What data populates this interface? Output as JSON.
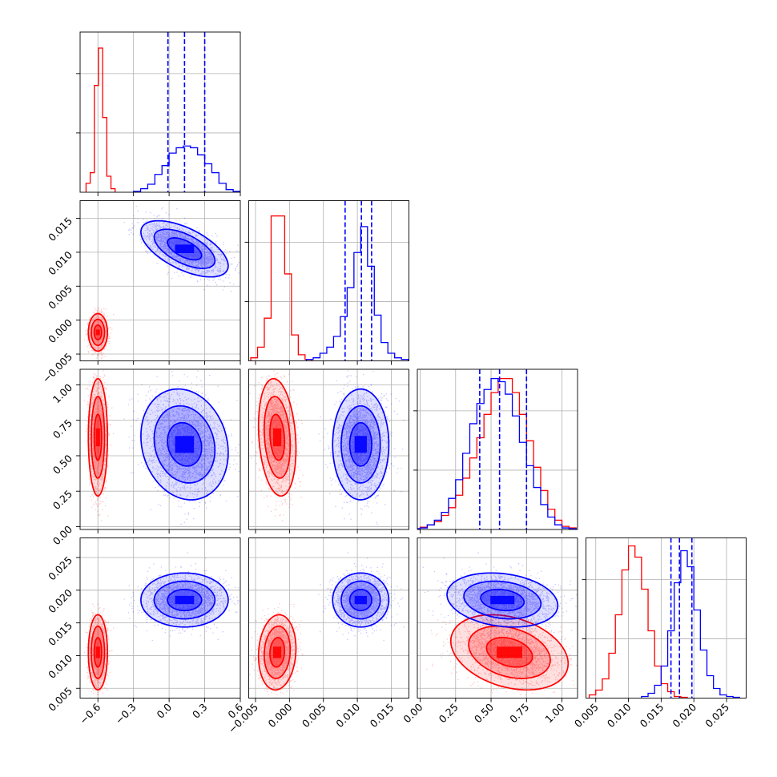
{
  "chart_data": {
    "type": "corner",
    "colors": {
      "red": "#ff0000",
      "blue": "#0000ff"
    },
    "parameters": [
      {
        "range": [
          -0.75,
          0.6
        ],
        "ticks": [
          "−0.6",
          "−0.3",
          "0.0",
          "0.3",
          "0.6"
        ],
        "tick_values": [
          -0.6,
          -0.3,
          0.0,
          0.3,
          0.6
        ]
      },
      {
        "range": [
          -0.006,
          0.0176
        ],
        "ticks": [
          "−0.005",
          "0.000",
          "0.005",
          "0.010",
          "0.015"
        ],
        "tick_values": [
          -0.005,
          0.0,
          0.005,
          0.01,
          0.015
        ]
      },
      {
        "range": [
          -0.02,
          1.11
        ],
        "ticks": [
          "0.00",
          "0.25",
          "0.50",
          "0.75",
          "1.00"
        ],
        "tick_values": [
          0.0,
          0.25,
          0.5,
          0.75,
          1.0
        ]
      },
      {
        "range": [
          0.0035,
          0.028
        ],
        "ticks": [
          "0.005",
          "0.010",
          "0.015",
          "0.020",
          "0.025"
        ],
        "tick_values": [
          0.005,
          0.01,
          0.015,
          0.02,
          0.025
        ]
      }
    ],
    "series": [
      {
        "color": "red",
        "mean": [
          -0.6,
          -0.0018,
          0.63,
          0.0105
        ],
        "sd": [
          0.035,
          0.0012,
          0.18,
          0.0025
        ],
        "corr": [
          [
            1,
            0,
            0,
            0
          ],
          [
            0,
            1,
            -0.2,
            0.1
          ],
          [
            0,
            -0.2,
            1,
            -0.3
          ],
          [
            0,
            0.1,
            -0.3,
            1
          ]
        ]
      },
      {
        "color": "blue",
        "mean": [
          0.13,
          0.0105,
          0.58,
          0.0185
        ],
        "sd": [
          0.16,
          0.0018,
          0.17,
          0.0018
        ],
        "corr": [
          [
            1,
            -0.6,
            -0.15,
            0
          ],
          [
            -0.6,
            1,
            0,
            0
          ],
          [
            -0.15,
            0,
            1,
            -0.2
          ],
          [
            0,
            0,
            -0.2,
            1
          ]
        ]
      }
    ],
    "blue_quantiles": [
      [
        -0.01,
        0.13,
        0.3
      ],
      [
        0.0082,
        0.0106,
        0.0121
      ],
      [
        0.42,
        0.56,
        0.75
      ],
      [
        0.0165,
        0.0178,
        0.0197
      ]
    ],
    "histograms": [
      {
        "red": {
          "edges": [
            -0.7,
            -0.665,
            -0.63,
            -0.595,
            -0.56,
            -0.525,
            -0.49,
            -0.455
          ],
          "counts": [
            0.05,
            0.11,
            0.6,
            0.81,
            0.42,
            0.09,
            0.02
          ]
        },
        "blue": {
          "edges": [
            -0.3,
            -0.24,
            -0.18,
            -0.12,
            -0.06,
            0.0,
            0.06,
            0.12,
            0.18,
            0.24,
            0.3,
            0.36,
            0.42,
            0.48,
            0.54,
            0.6
          ],
          "counts": [
            0.005,
            0.02,
            0.045,
            0.1,
            0.15,
            0.22,
            0.25,
            0.26,
            0.25,
            0.21,
            0.16,
            0.11,
            0.05,
            0.015,
            0.005
          ]
        },
        "ymax": 0.9
      },
      {
        "red": {
          "edges": [
            -0.0057,
            -0.0047,
            -0.0037,
            -0.0027,
            -0.0017,
            -0.0007,
            0.0003,
            0.0013,
            0.0023,
            0.0033
          ],
          "counts": [
            0.02,
            0.09,
            0.28,
            0.95,
            0.95,
            0.57,
            0.17,
            0.04,
            0.01
          ]
        },
        "blue": {
          "edges": [
            0.0025,
            0.0035,
            0.0045,
            0.0055,
            0.0065,
            0.0075,
            0.0085,
            0.0095,
            0.0105,
            0.0115,
            0.0125,
            0.0135,
            0.0145,
            0.0155,
            0.0165,
            0.0175
          ],
          "counts": [
            0.01,
            0.02,
            0.05,
            0.09,
            0.16,
            0.29,
            0.48,
            0.71,
            0.88,
            0.62,
            0.3,
            0.12,
            0.05,
            0.02,
            0.01
          ]
        },
        "ymax": 1.05
      },
      {
        "red": {
          "edges": [
            -0.05,
            0.0,
            0.05,
            0.1,
            0.15,
            0.2,
            0.25,
            0.3,
            0.35,
            0.4,
            0.45,
            0.5,
            0.55,
            0.6,
            0.65,
            0.7,
            0.75,
            0.8,
            0.85,
            0.9,
            0.95,
            1.0,
            1.05,
            1.1
          ],
          "counts": [
            0.005,
            0.015,
            0.03,
            0.05,
            0.09,
            0.14,
            0.22,
            0.33,
            0.46,
            0.59,
            0.74,
            0.88,
            0.97,
            0.97,
            0.88,
            0.74,
            0.57,
            0.4,
            0.25,
            0.13,
            0.06,
            0.02,
            0.01
          ]
        },
        "blue": {
          "edges": [
            -0.05,
            0.0,
            0.05,
            0.1,
            0.15,
            0.2,
            0.25,
            0.3,
            0.35,
            0.4,
            0.45,
            0.5,
            0.55,
            0.6,
            0.65,
            0.7,
            0.75,
            0.8,
            0.85,
            0.9,
            0.95,
            1.0,
            1.05,
            1.1
          ],
          "counts": [
            0.005,
            0.01,
            0.03,
            0.06,
            0.11,
            0.2,
            0.32,
            0.49,
            0.68,
            0.81,
            0.9,
            0.97,
            0.95,
            0.87,
            0.73,
            0.56,
            0.41,
            0.27,
            0.16,
            0.08,
            0.03,
            0.01,
            0.005
          ]
        },
        "ymax": 1.03
      },
      {
        "red": {
          "edges": [
            0.004,
            0.005,
            0.006,
            0.007,
            0.008,
            0.009,
            0.01,
            0.011,
            0.012,
            0.013,
            0.014,
            0.015,
            0.016,
            0.017,
            0.018,
            0.019
          ],
          "counts": [
            0.02,
            0.05,
            0.12,
            0.28,
            0.52,
            0.8,
            0.95,
            0.88,
            0.68,
            0.42,
            0.2,
            0.09,
            0.04,
            0.01,
            0.005
          ]
        },
        "blue": {
          "edges": [
            0.012,
            0.013,
            0.014,
            0.015,
            0.016,
            0.017,
            0.018,
            0.019,
            0.02,
            0.021,
            0.022,
            0.023,
            0.024,
            0.025,
            0.026,
            0.027
          ],
          "counts": [
            0.01,
            0.03,
            0.08,
            0.2,
            0.42,
            0.72,
            0.92,
            0.82,
            0.55,
            0.3,
            0.14,
            0.06,
            0.02,
            0.01,
            0.005
          ]
        },
        "ymax": 1.0
      }
    ]
  }
}
